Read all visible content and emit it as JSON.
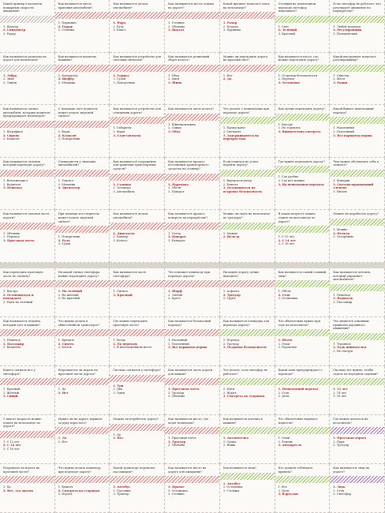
{
  "sheets": [
    {
      "id": "top",
      "rows": [
        [
          {
            "color": "#b8b3ad",
            "q": "Какой пример в казачьем пожарным скорости движения?",
            "o": [
              "1. Шахтер",
              "2. Спидометр",
              "3. Радар"
            ],
            "a": 1
          },
          {
            "color": "#e36b6b",
            "q": "Как называется место хранения автомобиля?",
            "o": [
              "1. Парковка",
              "2. Гараж",
              "3. Стоянка"
            ],
            "a": 1
          },
          {
            "color": "#e36b6b",
            "q": "Как называется деталь автомобиля?",
            "o": [
              "1. Фара",
              "2. Руль",
              "3. Капот"
            ],
            "a": 0
          },
          {
            "color": "#e36b6b",
            "q": "Как называются места отдыха на дороге?",
            "o": [
              "1. Стоянка",
              "2. Обочина",
              "3. Вокзал"
            ],
            "a": 2
          },
          {
            "color": "#e36b6b",
            "q": "Какой предмет помогает ехать на велосипеде?",
            "o": [
              "1. Радар",
              "2. Педали",
              "3. Пружина"
            ],
            "a": 0
          },
          {
            "color": "#8bc34a",
            "q": "Стоящий на пешеходном переходе светофор показывает?",
            "o": [
              "1. Свет",
              "2. Зелёный",
              "3. Красный"
            ],
            "a": 1
          },
          {
            "color": "#8bc34a",
            "q": "Если светофор не работает, кто регулирует движение на перекрестке?",
            "o": [
              "1. Любой пешеход",
              "2. Регулировщик",
              "3. Полицейский"
            ],
            "a": 1
          }
        ],
        [
          {
            "color": "#b8b3ad",
            "q": "Как называется разметка на дороге для пешеходов?",
            "o": [
              "1. Зебра",
              "2. Знак",
              "3. Линия"
            ],
            "a": 0
          },
          {
            "color": "#e36b6b",
            "q": "Как называется водитель машины?",
            "o": [
              "1. Кондуктор",
              "2. Шофёр",
              "3. Механик"
            ],
            "a": 1
          },
          {
            "color": "#e36b6b",
            "q": "Как называется устройство для световых сигналов?",
            "o": [
              "1. Тормоз",
              "2. Гудок",
              "3. Поворотник"
            ],
            "a": 0
          },
          {
            "color": "#e36b6b",
            "q": "Как называется резиновый обруч колеса?",
            "o": [
              "1. Обод",
              "2. Диск",
              "3. Шина"
            ],
            "a": 2
          },
          {
            "color": "#e36b6b",
            "q": "Можно ли переходить дорогу на красный свет?",
            "o": [
              "1. Нет",
              "2. Да"
            ],
            "a": 1
          },
          {
            "color": "#8bc34a",
            "q": "Как называется место, где можно переходить дорогу?",
            "o": [
              "1. Островок безопасности",
              "2. Переход",
              "3. Остановка"
            ],
            "a": 2
          },
          {
            "color": "#8bc34a",
            "q": "Какой инструмент помогает регулировщику?",
            "o": [
              "1. Свисток",
              "2. Жезл",
              "3. Рация"
            ],
            "a": 2
          }
        ],
        [
          {
            "color": "#e36b6b",
            "q": "Как называется сигнал автомобиля, которым водитель предупреждает пешеходов?",
            "o": [
              "1. Штрафная",
              "2. Сирена",
              "3. Клаксон"
            ],
            "a": 1
          },
          {
            "color": "#e36b6b",
            "q": "С помощью чего водитель может подать звуковой сигнал?",
            "o": [
              "1. Фары",
              "2. Клаксон",
              "3. Поворотник"
            ],
            "a": 1
          },
          {
            "color": "#e36b6b",
            "q": "Как называется устройство для освещения дороги?",
            "o": [
              "1. Габариты",
              "2. Фары",
              "3. Стоп-сигналы"
            ],
            "a": 2
          },
          {
            "color": "#e36b6b",
            "q": "Как называется часть колеса?",
            "o": [
              "1. Шиномонтажка",
              "2. Спица",
              "3. Обод"
            ],
            "a": 2
          },
          {
            "color": "#8bc34a",
            "q": "Что делают с пешеходами при переходе дороги?",
            "o": [
              "1. Пропускают",
              "2. Сигналят",
              "3. Задерживаются на перекрёстках"
            ],
            "a": 2
          },
          {
            "color": "#8bc34a",
            "q": "Как лучше переходить дорогу?",
            "o": [
              "1. Быстро",
              "2. Не торопясь",
              "3. Внимательно смотреть"
            ],
            "a": 2
          },
          {
            "color": "#8bc34a",
            "q": "Какой бывает пешеходный переход?",
            "o": [
              "1. Надземный",
              "2. Подземный",
              "3. Все варианты верны"
            ],
            "a": 2
          }
        ],
        [
          {
            "color": "#e36b6b",
            "q": "Как называется человек, который переходит дорогу?",
            "o": [
              "1. Велосипедист",
              "2. Водитель",
              "3. Пешеход"
            ],
            "a": 2
          },
          {
            "color": "#e36b6b",
            "q": "Специалисты у знающих автомобилей?",
            "o": [
              "1. Таксист",
              "2. Механик",
              "3. Диспетчер"
            ],
            "a": 2
          },
          {
            "color": "#e36b6b",
            "q": "Как называется сооружение для хранения транспортных средств?",
            "o": [
              "1. Стоянка",
              "2. Эстакада",
              "3. Автомобиль"
            ],
            "a": 0
          },
          {
            "color": "#e36b6b",
            "q": "Как называется процесс постановки транспортного средства на стоянку?",
            "o": [
              "1. Парковка",
              "2. Обгон",
              "3. Поворот"
            ],
            "a": 0
          },
          {
            "color": "#8bc34a",
            "q": "Если пешеход не успел перейти дорогу?",
            "o": [
              "1. Вернуться назад",
              "2. Бежать",
              "3. Остановиться на островке безопасности"
            ],
            "a": 2
          },
          {
            "color": "#8bc34a",
            "q": "Где нужно переходить дорогу?",
            "o": [
              "1. Где удобно",
              "2. Где нет машин",
              "3. На пешеходном переходе"
            ],
            "a": 2
          },
          {
            "color": "#8bc34a",
            "q": "Чем можно обозначить себя в темноте?",
            "o": [
              "1. Фонарик",
              "2. Световозвращающий элемент",
              "3. Ничем"
            ],
            "a": 1
          }
        ],
        [
          {
            "color": "#e36b6b",
            "q": "Как называется опасная часть дороги?",
            "o": [
              "1. Обочина",
              "2. Переход",
              "3. Проезжая часть"
            ],
            "a": 2
          },
          {
            "color": "#e36b6b",
            "q": "При помощи чего водитель может подать звуковой сигнал?",
            "o": [
              "1. Поворотник",
              "2. Руль",
              "3. Гудок"
            ],
            "a": 1
          },
          {
            "color": "#e36b6b",
            "q": "Как называется деталь автомобиля?",
            "o": [
              "1. Двигатель",
              "2. Бампер",
              "3. Колесо"
            ],
            "a": 0
          },
          {
            "color": "#e36b6b",
            "q": "Как называется процесс поворота на перекрёстке?",
            "o": [
              "1. Съезд",
              "2. Поворот",
              "3. Разворот"
            ],
            "a": 1
          },
          {
            "color": "#8bc34a",
            "q": "Можно ли ехать на велосипеде по тротуару?",
            "o": [
              "1. Можно",
              "2. Нельзя"
            ],
            "a": 1
          },
          {
            "color": "#8bc34a",
            "q": "В каком возрасте можно ездить на велосипеде по дороге?",
            "o": [
              "1. С 12 лет",
              "2. С 14 лет",
              "3. С 18 лет"
            ],
            "a": 1
          },
          {
            "color": "#8bc34a",
            "q": "Можно ли перебегать дорогу?",
            "o": [
              "1. Можно",
              "2. Нельзя",
              "3. Осторожно"
            ],
            "a": 1
          }
        ]
      ]
    },
    {
      "id": "bottom",
      "rows": [
        [
          {
            "color": "#e36b6b",
            "q": "Как переходить проезжую часть по сигналу?",
            "o": [
              "1. Быстро",
              "2. Остановиться и подождать",
              "3. Идти на зелёный"
            ],
            "a": 1
          },
          {
            "color": "#e36b6b",
            "q": "На какой сигнал светофора можно переходить дорогу?",
            "o": [
              "1. На зелёный",
              "2. На жёлтый",
              "3. На красный"
            ],
            "a": 0
          },
          {
            "color": "#e36b6b",
            "q": "Как называется часть светофора?",
            "o": [
              "1. Сигнал",
              "2. Красный"
            ],
            "a": 1
          },
          {
            "color": "#e36b6b",
            "q": "Что поможет пешеходу при переходе дороги?",
            "o": [
              "1. Шарф",
              "2. Зонтик",
              "3. Крест"
            ],
            "a": 0
          },
          {
            "color": "#e36b6b",
            "q": "На какую дорогу лучше выходить?",
            "o": [
              "1. Асфальт",
              "2. Тротуар",
              "3. Грунт"
            ],
            "a": 1
          },
          {
            "color": "#8bc34a",
            "q": "Как называется самый главный знак?",
            "o": [
              "1. Обгон",
              "2. Стоп",
              "3. Остановка"
            ],
            "a": 1
          },
          {
            "color": "#8bc34a",
            "q": "Как называется человек, который управляет автомобилем?",
            "o": [
              "1. Пешеход",
              "2. Водитель",
              "3. Пассажир"
            ],
            "a": 1
          }
        ],
        [
          {
            "color": "#e36b6b",
            "q": "Как называется человек, который едет в машине?",
            "o": [
              "1. Пешеход",
              "2. Пассажир",
              "3. Водитель"
            ],
            "a": 1
          },
          {
            "color": "#e36b6b",
            "q": "Что нужно делать в общественном транспорте?",
            "o": [
              "1. Кричать",
              "2. Сидеть",
              "3. Бегать"
            ],
            "a": 1
          },
          {
            "color": "#e36b6b",
            "q": "Где можно переходить проезжую часть?",
            "o": [
              "1. Везде",
              "2. По переходу",
              "3. В неположенном месте"
            ],
            "a": 1
          },
          {
            "color": "#e36b6b",
            "q": "Как называется безопасный переход?",
            "o": [
              "1. Наземный",
              "2. Подземный",
              "3. Все варианты верны"
            ],
            "a": 2
          },
          {
            "color": "#8bc34a",
            "q": "Как называется площадка для перехода дороги?",
            "o": [
              "1. Переход",
              "2. Тротуар",
              "3. Островок безопасности"
            ],
            "a": 2
          },
          {
            "color": "#8bc34a",
            "q": "Что обязательно нужно при езде на велосипеде?",
            "o": [
              "1. Шлем",
              "2. Очки",
              "3. Перчатки"
            ],
            "a": 0
          },
          {
            "color": "#8bc34a",
            "q": "Что является основным правилом дорожного движения?",
            "o": [
              "1. Торопись",
              "2. Будь внимателен",
              "3. Не смотри"
            ],
            "a": 1
          }
        ],
        [
          {
            "color": "#e36b6b",
            "q": "Какого сигнала нет у светофора?",
            "o": [
              "1. Красный",
              "2. Жёлтый",
              "3. Синий"
            ],
            "a": 2
          },
          {
            "color": "#e36b6b",
            "q": "Разрешается ли играть на проезжей части дороги?",
            "o": [
              "1. Да",
              "2. Нет"
            ],
            "a": 1
          },
          {
            "color": "#e36b6b",
            "q": "Сколько сигналов у светофора?",
            "o": [
              "1. Три",
              "2. Два",
              "3. Один"
            ],
            "a": 0
          },
          {
            "color": "#e36b6b",
            "q": "Как называется часть дороги для машин?",
            "o": [
              "1. Проезжая часть",
              "2. Тротуар",
              "3. Обочина"
            ],
            "a": 0
          },
          {
            "color": "#8bc34a",
            "q": "Что делать, если светофор не работает?",
            "o": [
              "1. Идти",
              "2. Ждать",
              "3. Смотреть по сторонам"
            ],
            "a": 2
          },
          {
            "color": "#8bc34a",
            "q": "Какой знак предупреждает о переходе?",
            "o": [
              "1. Пешеходный переход",
              "2. Стоп",
              "3. Дети"
            ],
            "a": 0
          },
          {
            "color": "#8bc34a",
            "q": "Сколько лет нужно, чтобы сидеть на переднем сидении?",
            "o": [
              "1. 12 лет",
              "2. 14 лет",
              "3. 16 лет"
            ],
            "a": 0
          }
        ],
        [
          {
            "color": "#e36b6b",
            "q": "С какого возраста можно ездить на велосипеде по дороге?",
            "o": [
              "1. С 12 лет",
              "2. С 14 лет",
              "3. С 16 лет"
            ],
            "a": 1
          },
          {
            "color": "#e36b6b",
            "q": "Нужно ли на дороге держать за руку взрослого?",
            "o": [
              "1. Да",
              "2. Нет"
            ],
            "a": 0
          },
          {
            "color": "#e36b6b",
            "q": "Можно ли перебегать дорогу?",
            "o": [
              "1. Да",
              "2. Нет"
            ],
            "a": 1
          },
          {
            "color": "#e36b6b",
            "q": "Как называется место, где ходят пешеходы?",
            "o": [
              "1. Проезжая часть",
              "2. Тротуар",
              "3. Обочина"
            ],
            "a": 1
          },
          {
            "color": "#8bc34a",
            "q": "Как называется аптечка в машине?",
            "o": [
              "1. Автоаптечка",
              "2. Сумка",
              "3. Ящик"
            ],
            "a": 0
          },
          {
            "color": "#8bc34a",
            "q": "Что обязательно надевает водитель?",
            "o": [
              "1. Очки",
              "2. Ремень",
              "3. Автокресло"
            ],
            "a": 2
          },
          {
            "color": "#a05fb8",
            "q": "Где можно кататься на велосипеде?",
            "o": [
              "1. Проезжая дорога",
              "2. Парк",
              "3. Тротуар"
            ],
            "a": 0
          }
        ],
        [
          {
            "color": "#e36b6b",
            "q": "Разрешено ли играть на проезжей части?",
            "o": [
              "1. Да",
              "2. Нет, это опасно"
            ],
            "a": 1
          },
          {
            "color": "#e36b6b",
            "q": "Что нужно делать пешеходу при переходе дороги?",
            "o": [
              "1. Бежать",
              "2. Смотреть по сторонам",
              "3. Играть"
            ],
            "a": 1
          },
          {
            "color": "#e36b6b",
            "q": "Какой транспорт перевозит пассажиров?",
            "o": [
              "1. Автобус",
              "2. Грузовик",
              "3. Трактор"
            ],
            "a": 0
          },
          {
            "color": "#e36b6b",
            "q": "Как называется место на дороге для ожидания?",
            "o": [
              "1. Правое",
              "2. Остановка",
              "3. Стоянка"
            ],
            "a": 0
          },
          {
            "color": "#8bc34a",
            "q": "Как называется знак?",
            "o": [
              "1. Автобус",
              "2. Остановка",
              "3. Стоянка"
            ],
            "a": 0
          },
          {
            "color": "#8bc34a",
            "q": "Кто должен соблюдать правила?",
            "o": [
              "1. Все",
              "2. Дети",
              "3. Взрослые"
            ],
            "a": 2
          },
          {
            "color": "#a05fb8",
            "q": "Как называется знак на дороге?",
            "o": [
              "1. Знак",
              "2. Стоп",
              "3. Светофор"
            ],
            "a": 0
          }
        ]
      ]
    }
  ]
}
